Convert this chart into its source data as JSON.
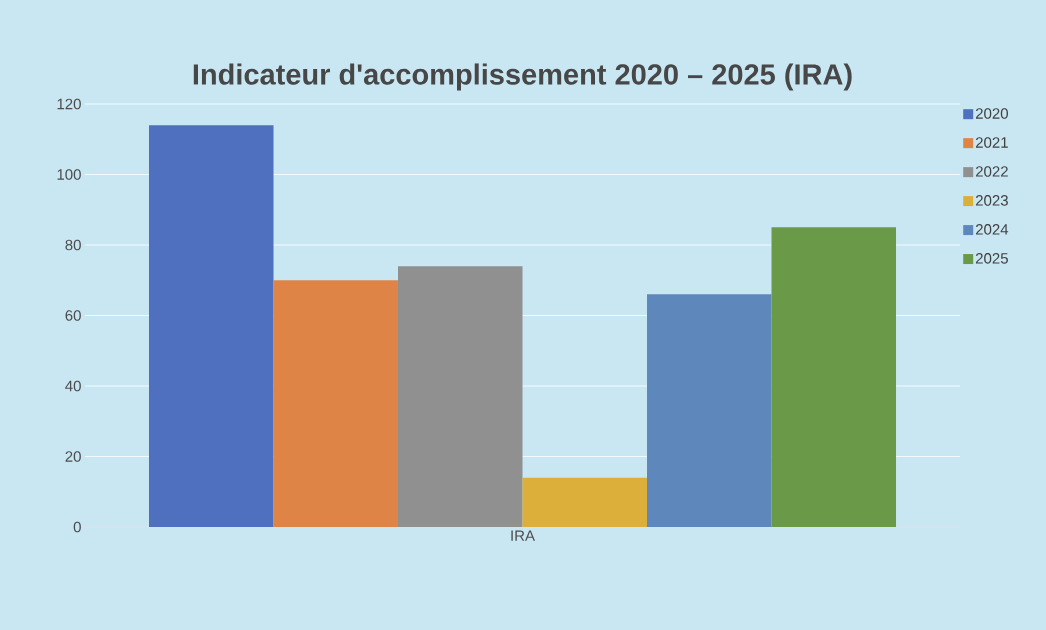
{
  "chart_data": {
    "type": "bar",
    "title": "Indicateur d'accomplissement 2020 – 2025 (IRA)",
    "categories": [
      "IRA"
    ],
    "series": [
      {
        "name": "2020",
        "color": "#4f6fbf",
        "values": [
          114
        ]
      },
      {
        "name": "2021",
        "color": "#de8446",
        "values": [
          70
        ]
      },
      {
        "name": "2022",
        "color": "#909090",
        "values": [
          74
        ]
      },
      {
        "name": "2023",
        "color": "#dcae3a",
        "values": [
          14
        ]
      },
      {
        "name": "2024",
        "color": "#5e88bb",
        "values": [
          66
        ]
      },
      {
        "name": "2025",
        "color": "#6a9a48",
        "values": [
          85
        ]
      }
    ],
    "ylim": [
      0,
      120
    ],
    "yticks": [
      0,
      20,
      40,
      60,
      80,
      100,
      120
    ],
    "grid": "y",
    "legend": "right"
  }
}
